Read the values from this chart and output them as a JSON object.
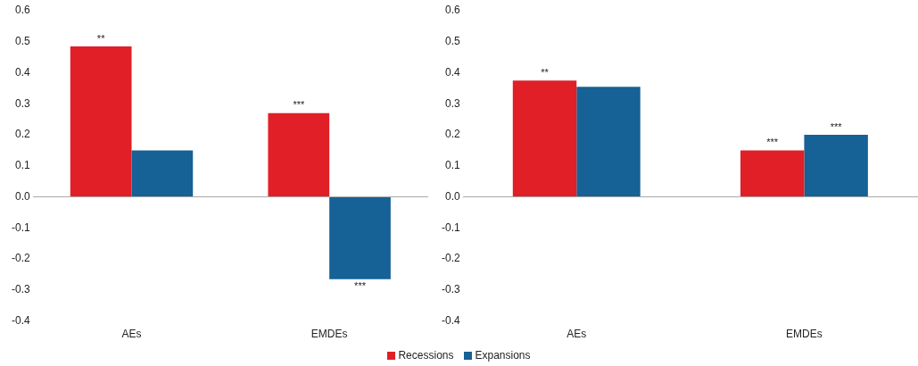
{
  "chart_data": [
    {
      "type": "bar",
      "categories": [
        "AEs",
        "EMDEs"
      ],
      "series": [
        {
          "color": "#e01f26",
          "values": [
            0.485,
            0.27
          ]
        },
        {
          "color": "#166196",
          "values": [
            0.15,
            -0.265
          ]
        }
      ],
      "ylim": [
        -0.4,
        0.6
      ],
      "yticks": [
        {
          "value": -0.4,
          "label": "-0.4"
        },
        {
          "value": -0.3,
          "label": "-0.3"
        },
        {
          "value": -0.2,
          "label": "-0.2"
        },
        {
          "value": -0.1,
          "label": "-0.1"
        },
        {
          "value": 0,
          "label": "0.0"
        },
        {
          "value": 0.1,
          "label": "0.1"
        },
        {
          "value": 0.2,
          "label": "0.2"
        },
        {
          "value": 0.3,
          "label": "0.3"
        },
        {
          "value": 0.4,
          "label": "0.4"
        },
        {
          "value": 0.5,
          "label": "0.5"
        },
        {
          "value": 0.6,
          "label": "0.6"
        }
      ],
      "annotations": [
        {
          "text": "**",
          "x": "AEs",
          "y": 0.485
        },
        {
          "text": "***",
          "x": "EMDEs",
          "y": 0.27
        },
        {
          "text": "***",
          "x": "EMDEs",
          "y": -0.265
        }
      ]
    },
    {
      "type": "bar",
      "categories": [
        "AEs",
        "EMDEs"
      ],
      "series": [
        {
          "name": "Recessions",
          "color": "#e01f26",
          "values": [
            0.375,
            0.15
          ]
        },
        {
          "name": "Expansions",
          "color": "#166196",
          "values": [
            0.355,
            0.2
          ]
        }
      ],
      "legend": "bottom",
      "ylim": [
        -0.4,
        0.6
      ],
      "yticks": [
        {
          "value": -0.4,
          "label": "-0.4"
        },
        {
          "value": -0.3,
          "label": "-0.3"
        },
        {
          "value": -0.2,
          "label": "-0.2"
        },
        {
          "value": -0.1,
          "label": "-0.1"
        },
        {
          "value": 0,
          "label": "0.0"
        },
        {
          "value": 0.1,
          "label": "0.1"
        },
        {
          "value": 0.2,
          "label": "0.2"
        },
        {
          "value": 0.3,
          "label": "0.3"
        },
        {
          "value": 0.4,
          "label": "0.4"
        },
        {
          "value": 0.5,
          "label": "0.5"
        },
        {
          "value": 0.6,
          "label": "0.6"
        }
      ],
      "annotations": [
        {
          "text": "**",
          "x": "AEs",
          "y": 0.375
        },
        {
          "text": "***",
          "x": "EMDEs",
          "y": 0.15
        },
        {
          "text": "***",
          "x": "EMDEs",
          "y": 0.2
        }
      ]
    }
  ]
}
